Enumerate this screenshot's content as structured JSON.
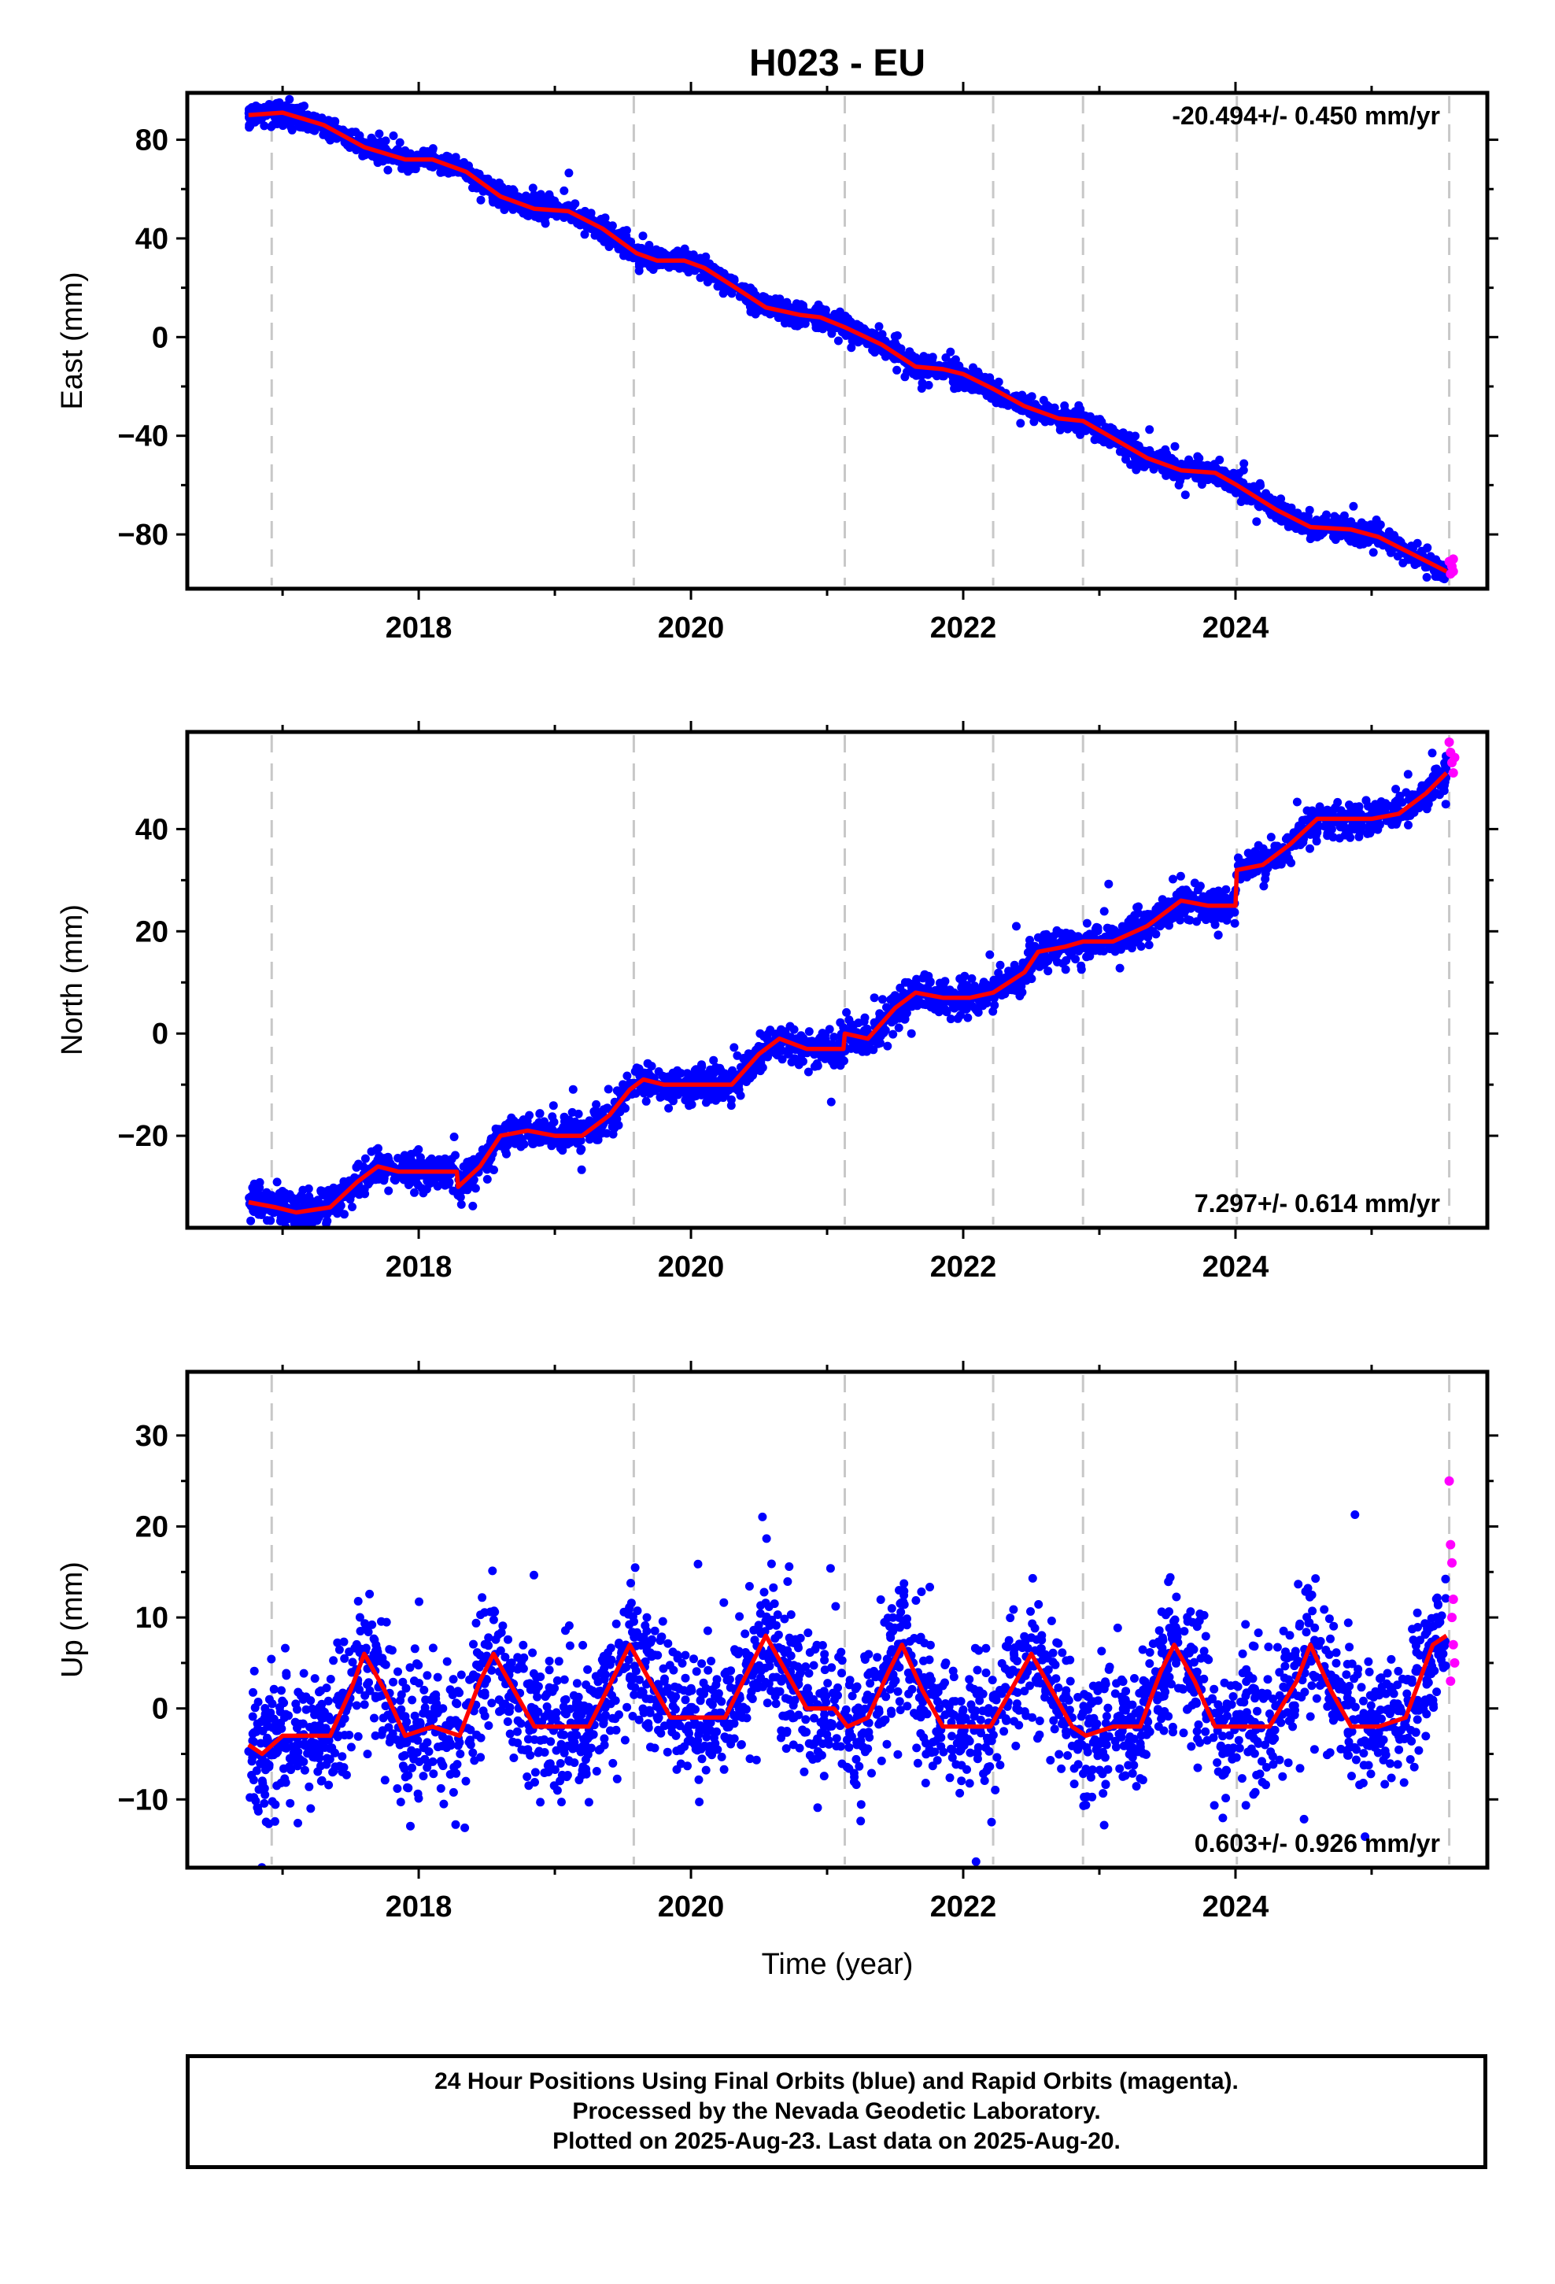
{
  "title": "H023 - EU",
  "xlabel": "Time (year)",
  "footer": {
    "line1": "24 Hour Positions Using Final Orbits (blue) and Rapid Orbits (magenta).",
    "line2": "Processed by the Nevada Geodetic Laboratory.",
    "line3": "Plotted on 2025-Aug-23. Last data on 2025-Aug-20."
  },
  "colors": {
    "final": "#0000ff",
    "rapid": "#ff00ff",
    "model": "#ff0000",
    "event_lines": "#c8c8c8",
    "frame": "#000000"
  },
  "chart_data": [
    {
      "type": "scatter",
      "id": "east",
      "ylabel": "East (mm)",
      "rate_text": "-20.494+/- 0.450 mm/yr",
      "rate_position": "top-right",
      "xlim": [
        2016.3,
        2025.85
      ],
      "ylim": [
        -102,
        99
      ],
      "xticks": [
        2018,
        2020,
        2022,
        2024
      ],
      "yticks": [
        80,
        40,
        0,
        -40,
        -80
      ],
      "event_lines_x": [
        2016.92,
        2019.58,
        2021.13,
        2022.22,
        2022.88,
        2024.01,
        2025.57
      ],
      "data_end": 2025.55,
      "trend": [
        [
          2016.75,
          90
        ],
        [
          2017.0,
          91
        ],
        [
          2017.3,
          86
        ],
        [
          2017.6,
          77
        ],
        [
          2017.9,
          72
        ],
        [
          2018.1,
          72
        ],
        [
          2018.35,
          67
        ],
        [
          2018.6,
          57
        ],
        [
          2018.85,
          52
        ],
        [
          2019.1,
          51
        ],
        [
          2019.35,
          44
        ],
        [
          2019.6,
          34
        ],
        [
          2019.75,
          31
        ],
        [
          2019.95,
          31
        ],
        [
          2020.1,
          28
        ],
        [
          2020.3,
          21
        ],
        [
          2020.55,
          12
        ],
        [
          2020.8,
          9
        ],
        [
          2020.95,
          8
        ],
        [
          2021.13,
          4
        ],
        [
          2021.4,
          -3
        ],
        [
          2021.65,
          -12
        ],
        [
          2021.85,
          -13
        ],
        [
          2022.0,
          -15
        ],
        [
          2022.22,
          -21
        ],
        [
          2022.45,
          -28
        ],
        [
          2022.7,
          -33
        ],
        [
          2022.88,
          -34
        ],
        [
          2023.1,
          -41
        ],
        [
          2023.35,
          -49
        ],
        [
          2023.6,
          -54
        ],
        [
          2023.85,
          -55
        ],
        [
          2024.01,
          -60
        ],
        [
          2024.3,
          -70
        ],
        [
          2024.55,
          -77
        ],
        [
          2024.85,
          -78
        ],
        [
          2025.05,
          -81
        ],
        [
          2025.3,
          -88
        ],
        [
          2025.55,
          -95
        ]
      ],
      "spread": 2.2,
      "rapid_points": [
        [
          2025.57,
          -91
        ],
        [
          2025.58,
          -96
        ],
        [
          2025.59,
          -93
        ],
        [
          2025.6,
          -95
        ],
        [
          2025.6,
          -90
        ]
      ]
    },
    {
      "type": "scatter",
      "id": "north",
      "ylabel": "North (mm)",
      "rate_text": "7.297+/- 0.614 mm/yr",
      "rate_position": "bottom-right",
      "xlim": [
        2016.3,
        2025.85
      ],
      "ylim": [
        -38,
        59
      ],
      "xticks": [
        2018,
        2020,
        2022,
        2024
      ],
      "yticks": [
        40,
        20,
        0,
        -20
      ],
      "event_lines_x": [
        2016.92,
        2019.58,
        2021.13,
        2022.22,
        2022.88,
        2024.01,
        2025.57
      ],
      "data_end": 2025.55,
      "trend": [
        [
          2016.75,
          -33
        ],
        [
          2016.95,
          -34
        ],
        [
          2017.1,
          -35
        ],
        [
          2017.35,
          -34
        ],
        [
          2017.55,
          -29
        ],
        [
          2017.7,
          -26
        ],
        [
          2017.85,
          -27
        ],
        [
          2018.0,
          -27
        ],
        [
          2018.2,
          -27
        ],
        [
          2018.28,
          -27
        ],
        [
          2018.29,
          -30
        ],
        [
          2018.45,
          -26
        ],
        [
          2018.6,
          -20
        ],
        [
          2018.8,
          -19
        ],
        [
          2019.0,
          -20
        ],
        [
          2019.2,
          -20
        ],
        [
          2019.4,
          -16
        ],
        [
          2019.55,
          -11
        ],
        [
          2019.65,
          -9
        ],
        [
          2019.8,
          -10
        ],
        [
          2020.0,
          -10
        ],
        [
          2020.3,
          -10
        ],
        [
          2020.5,
          -4
        ],
        [
          2020.65,
          -1
        ],
        [
          2020.85,
          -3
        ],
        [
          2021.05,
          -3
        ],
        [
          2021.12,
          -3
        ],
        [
          2021.13,
          0
        ],
        [
          2021.3,
          -1
        ],
        [
          2021.5,
          5
        ],
        [
          2021.65,
          8
        ],
        [
          2021.85,
          7
        ],
        [
          2022.05,
          7
        ],
        [
          2022.22,
          8
        ],
        [
          2022.45,
          12
        ],
        [
          2022.55,
          16
        ],
        [
          2022.75,
          17
        ],
        [
          2022.88,
          18
        ],
        [
          2023.1,
          18
        ],
        [
          2023.35,
          21
        ],
        [
          2023.6,
          26
        ],
        [
          2023.8,
          25
        ],
        [
          2024.0,
          25
        ],
        [
          2024.01,
          32
        ],
        [
          2024.2,
          33
        ],
        [
          2024.4,
          37
        ],
        [
          2024.6,
          42
        ],
        [
          2024.8,
          42
        ],
        [
          2025.0,
          42
        ],
        [
          2025.2,
          43
        ],
        [
          2025.4,
          47
        ],
        [
          2025.55,
          51
        ]
      ],
      "spread": 1.6,
      "rapid_points": [
        [
          2025.57,
          57
        ],
        [
          2025.58,
          55
        ],
        [
          2025.59,
          53
        ],
        [
          2025.6,
          51
        ],
        [
          2025.61,
          54
        ]
      ]
    },
    {
      "type": "scatter",
      "id": "up",
      "ylabel": "Up (mm)",
      "rate_text": "0.603+/- 0.926 mm/yr",
      "rate_position": "bottom-right",
      "xlim": [
        2016.3,
        2025.85
      ],
      "ylim": [
        -17.5,
        37
      ],
      "xticks": [
        2018,
        2020,
        2022,
        2024
      ],
      "yticks": [
        30,
        20,
        10,
        0,
        -10
      ],
      "event_lines_x": [
        2016.92,
        2019.58,
        2021.13,
        2022.22,
        2022.88,
        2024.01,
        2025.57
      ],
      "data_end": 2025.55,
      "trend": [
        [
          2016.75,
          -4
        ],
        [
          2016.85,
          -5
        ],
        [
          2017.0,
          -3
        ],
        [
          2017.2,
          -3
        ],
        [
          2017.35,
          -3
        ],
        [
          2017.5,
          2
        ],
        [
          2017.6,
          6
        ],
        [
          2017.75,
          2
        ],
        [
          2017.9,
          -3
        ],
        [
          2018.1,
          -2
        ],
        [
          2018.3,
          -3
        ],
        [
          2018.45,
          3
        ],
        [
          2018.55,
          6
        ],
        [
          2018.7,
          2
        ],
        [
          2018.85,
          -2
        ],
        [
          2019.05,
          -2
        ],
        [
          2019.25,
          -2
        ],
        [
          2019.45,
          4
        ],
        [
          2019.55,
          7
        ],
        [
          2019.7,
          3
        ],
        [
          2019.85,
          -1
        ],
        [
          2020.05,
          -1
        ],
        [
          2020.25,
          -1
        ],
        [
          2020.45,
          5
        ],
        [
          2020.55,
          8
        ],
        [
          2020.7,
          4
        ],
        [
          2020.85,
          0
        ],
        [
          2021.05,
          0
        ],
        [
          2021.15,
          -2
        ],
        [
          2021.3,
          -1
        ],
        [
          2021.45,
          4
        ],
        [
          2021.55,
          7
        ],
        [
          2021.7,
          2
        ],
        [
          2021.85,
          -2
        ],
        [
          2022.05,
          -2
        ],
        [
          2022.2,
          -2
        ],
        [
          2022.35,
          2
        ],
        [
          2022.5,
          6
        ],
        [
          2022.65,
          2
        ],
        [
          2022.8,
          -2
        ],
        [
          2022.9,
          -3
        ],
        [
          2023.1,
          -2
        ],
        [
          2023.3,
          -2
        ],
        [
          2023.45,
          4
        ],
        [
          2023.55,
          7
        ],
        [
          2023.7,
          3
        ],
        [
          2023.85,
          -2
        ],
        [
          2024.05,
          -2
        ],
        [
          2024.25,
          -2
        ],
        [
          2024.45,
          3
        ],
        [
          2024.55,
          7
        ],
        [
          2024.7,
          2
        ],
        [
          2024.85,
          -2
        ],
        [
          2025.05,
          -2
        ],
        [
          2025.25,
          -1
        ],
        [
          2025.45,
          7
        ],
        [
          2025.55,
          8
        ]
      ],
      "spread": 3.6,
      "rapid_points": [
        [
          2025.57,
          25
        ],
        [
          2025.58,
          18
        ],
        [
          2025.59,
          16
        ],
        [
          2025.6,
          12
        ],
        [
          2025.6,
          7
        ],
        [
          2025.61,
          5
        ],
        [
          2025.58,
          3
        ],
        [
          2025.59,
          10
        ]
      ]
    }
  ]
}
